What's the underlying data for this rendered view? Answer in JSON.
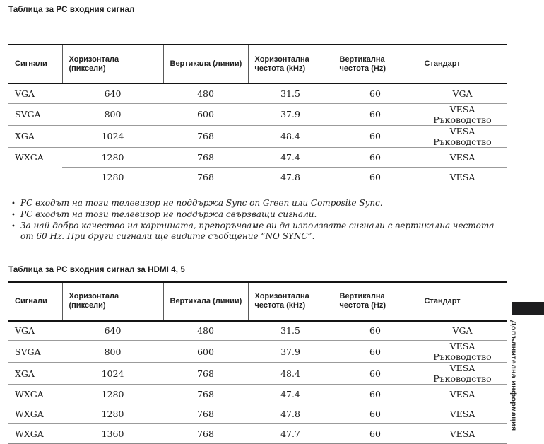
{
  "page": {
    "section1_title": "Таблица за PC входния сигнал",
    "section2_title": "Таблица за PC входния сигнал за HDMI 4, 5"
  },
  "columns": [
    "Сигнали",
    "Хоризонтала (пиксели)",
    "Вертикала (линии)",
    "Хоризонтална честота (kHz)",
    "Вертикална честота (Hz)",
    "Стандарт"
  ],
  "tables": {
    "pc_input": {
      "rows": [
        [
          "VGA",
          "640",
          "480",
          "31.5",
          "60",
          "VGA"
        ],
        [
          "SVGA",
          "800",
          "600",
          "37.9",
          "60",
          "VESA Ръководство"
        ],
        [
          "XGA",
          "1024",
          "768",
          "48.4",
          "60",
          "VESA Ръководство"
        ],
        [
          "WXGA",
          "1280",
          "768",
          "47.4",
          "60",
          "VESA"
        ],
        [
          "",
          "1280",
          "768",
          "47.8",
          "60",
          "VESA"
        ]
      ]
    },
    "hdmi_input": {
      "rows": [
        [
          "VGA",
          "640",
          "480",
          "31.5",
          "60",
          "VGA"
        ],
        [
          "SVGA",
          "800",
          "600",
          "37.9",
          "60",
          "VESA Ръководство"
        ],
        [
          "XGA",
          "1024",
          "768",
          "48.4",
          "60",
          "VESA Ръководство"
        ],
        [
          "WXGA",
          "1280",
          "768",
          "47.4",
          "60",
          "VESA"
        ],
        [
          "WXGA",
          "1280",
          "768",
          "47.8",
          "60",
          "VESA"
        ],
        [
          "WXGA",
          "1360",
          "768",
          "47.7",
          "60",
          "VESA"
        ]
      ]
    }
  },
  "notes": [
    "PC входът на този телевизор не поддържа Sync on Green или Composite Sync.",
    "PC входът на този телевизор не поддържа свързващи сигнали.",
    "За най-добро качество на картината, препоръчваме ви да използвате сигнали с вертикална честота от 60 Hz. При други сигнали ще видите съобщение “NO SYNC”."
  ],
  "bullet_char": "•",
  "sidebar": {
    "section_label": "Допълнителна информация",
    "tab_color": "#1d1d1f"
  }
}
